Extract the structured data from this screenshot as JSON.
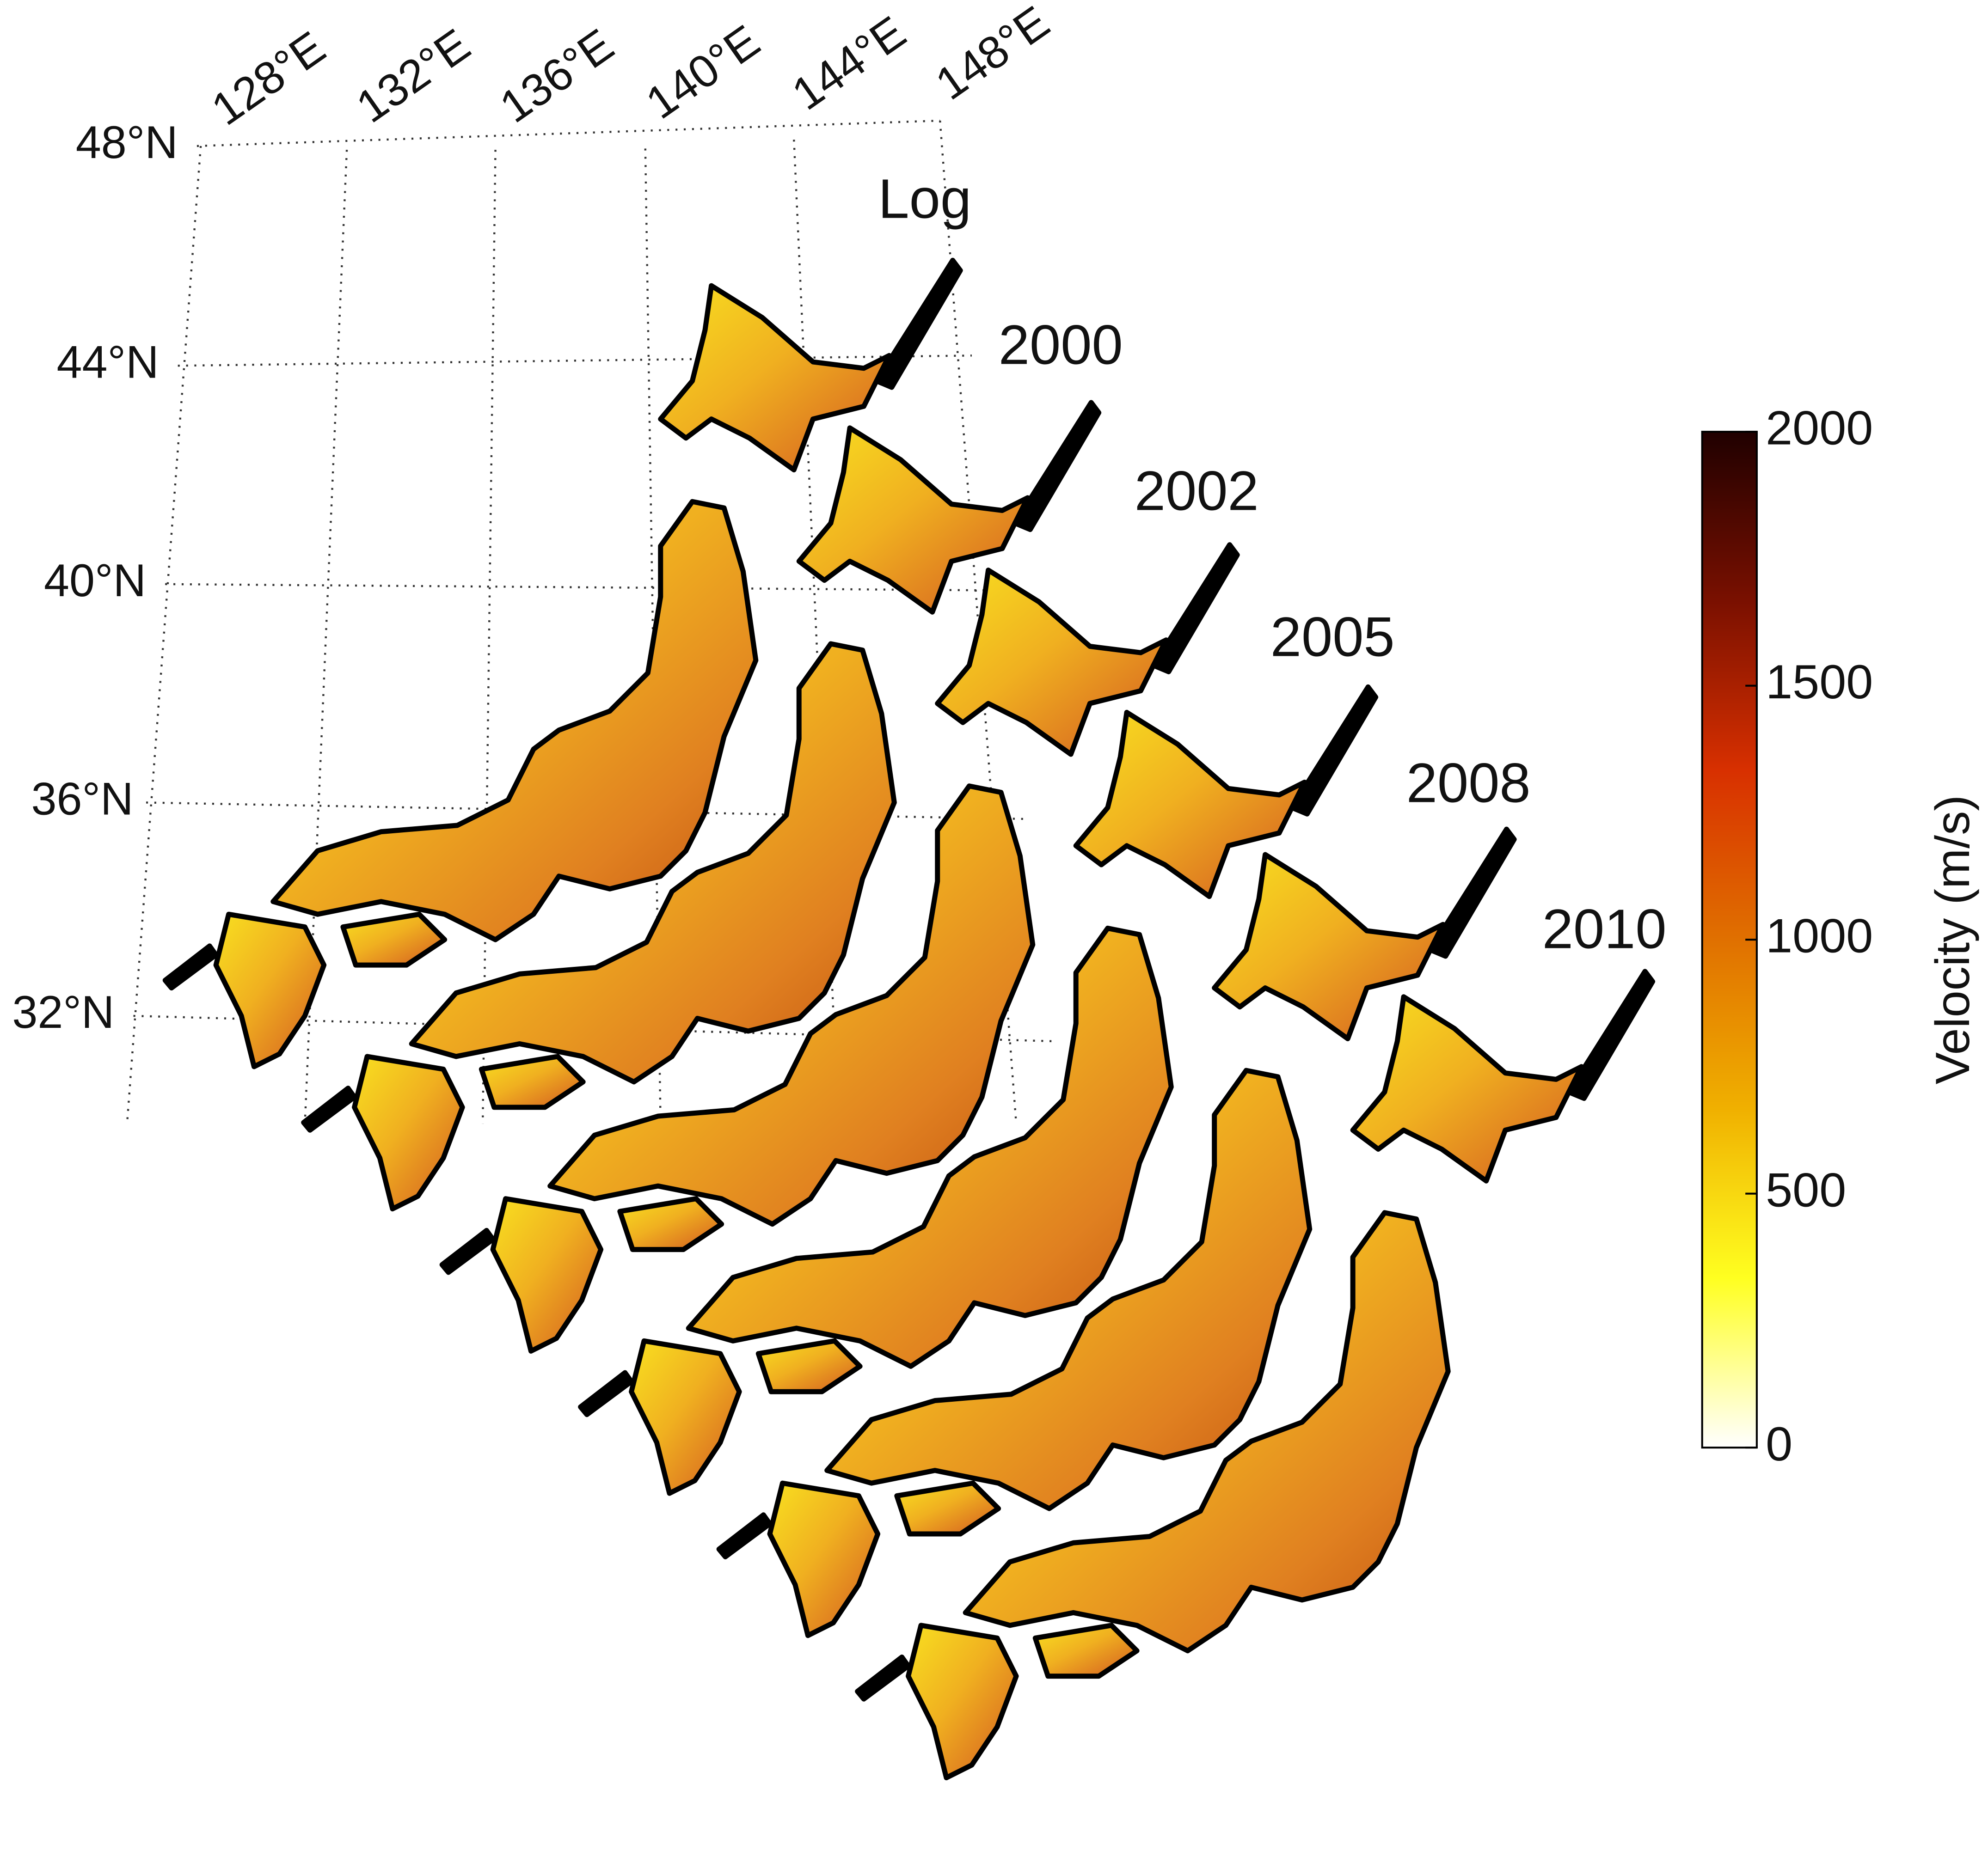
{
  "map": {
    "lat_labels": [
      "48°N",
      "44°N",
      "40°N",
      "36°N",
      "32°N"
    ],
    "lon_labels": [
      "128°E",
      "132°E",
      "136°E",
      "140°E",
      "144°E",
      "148°E"
    ],
    "panels": [
      "Log",
      "2000",
      "2002",
      "2005",
      "2008",
      "2010"
    ]
  },
  "colorbar": {
    "label": "Velocity (m/s)",
    "lim": [
      0,
      2000
    ],
    "ticks": [
      0,
      500,
      1000,
      1500,
      2000
    ],
    "colors": [
      "#ffffff",
      "#ffff20",
      "#f0b000",
      "#e07000",
      "#d83000",
      "#7a1000",
      "#200000"
    ]
  }
}
